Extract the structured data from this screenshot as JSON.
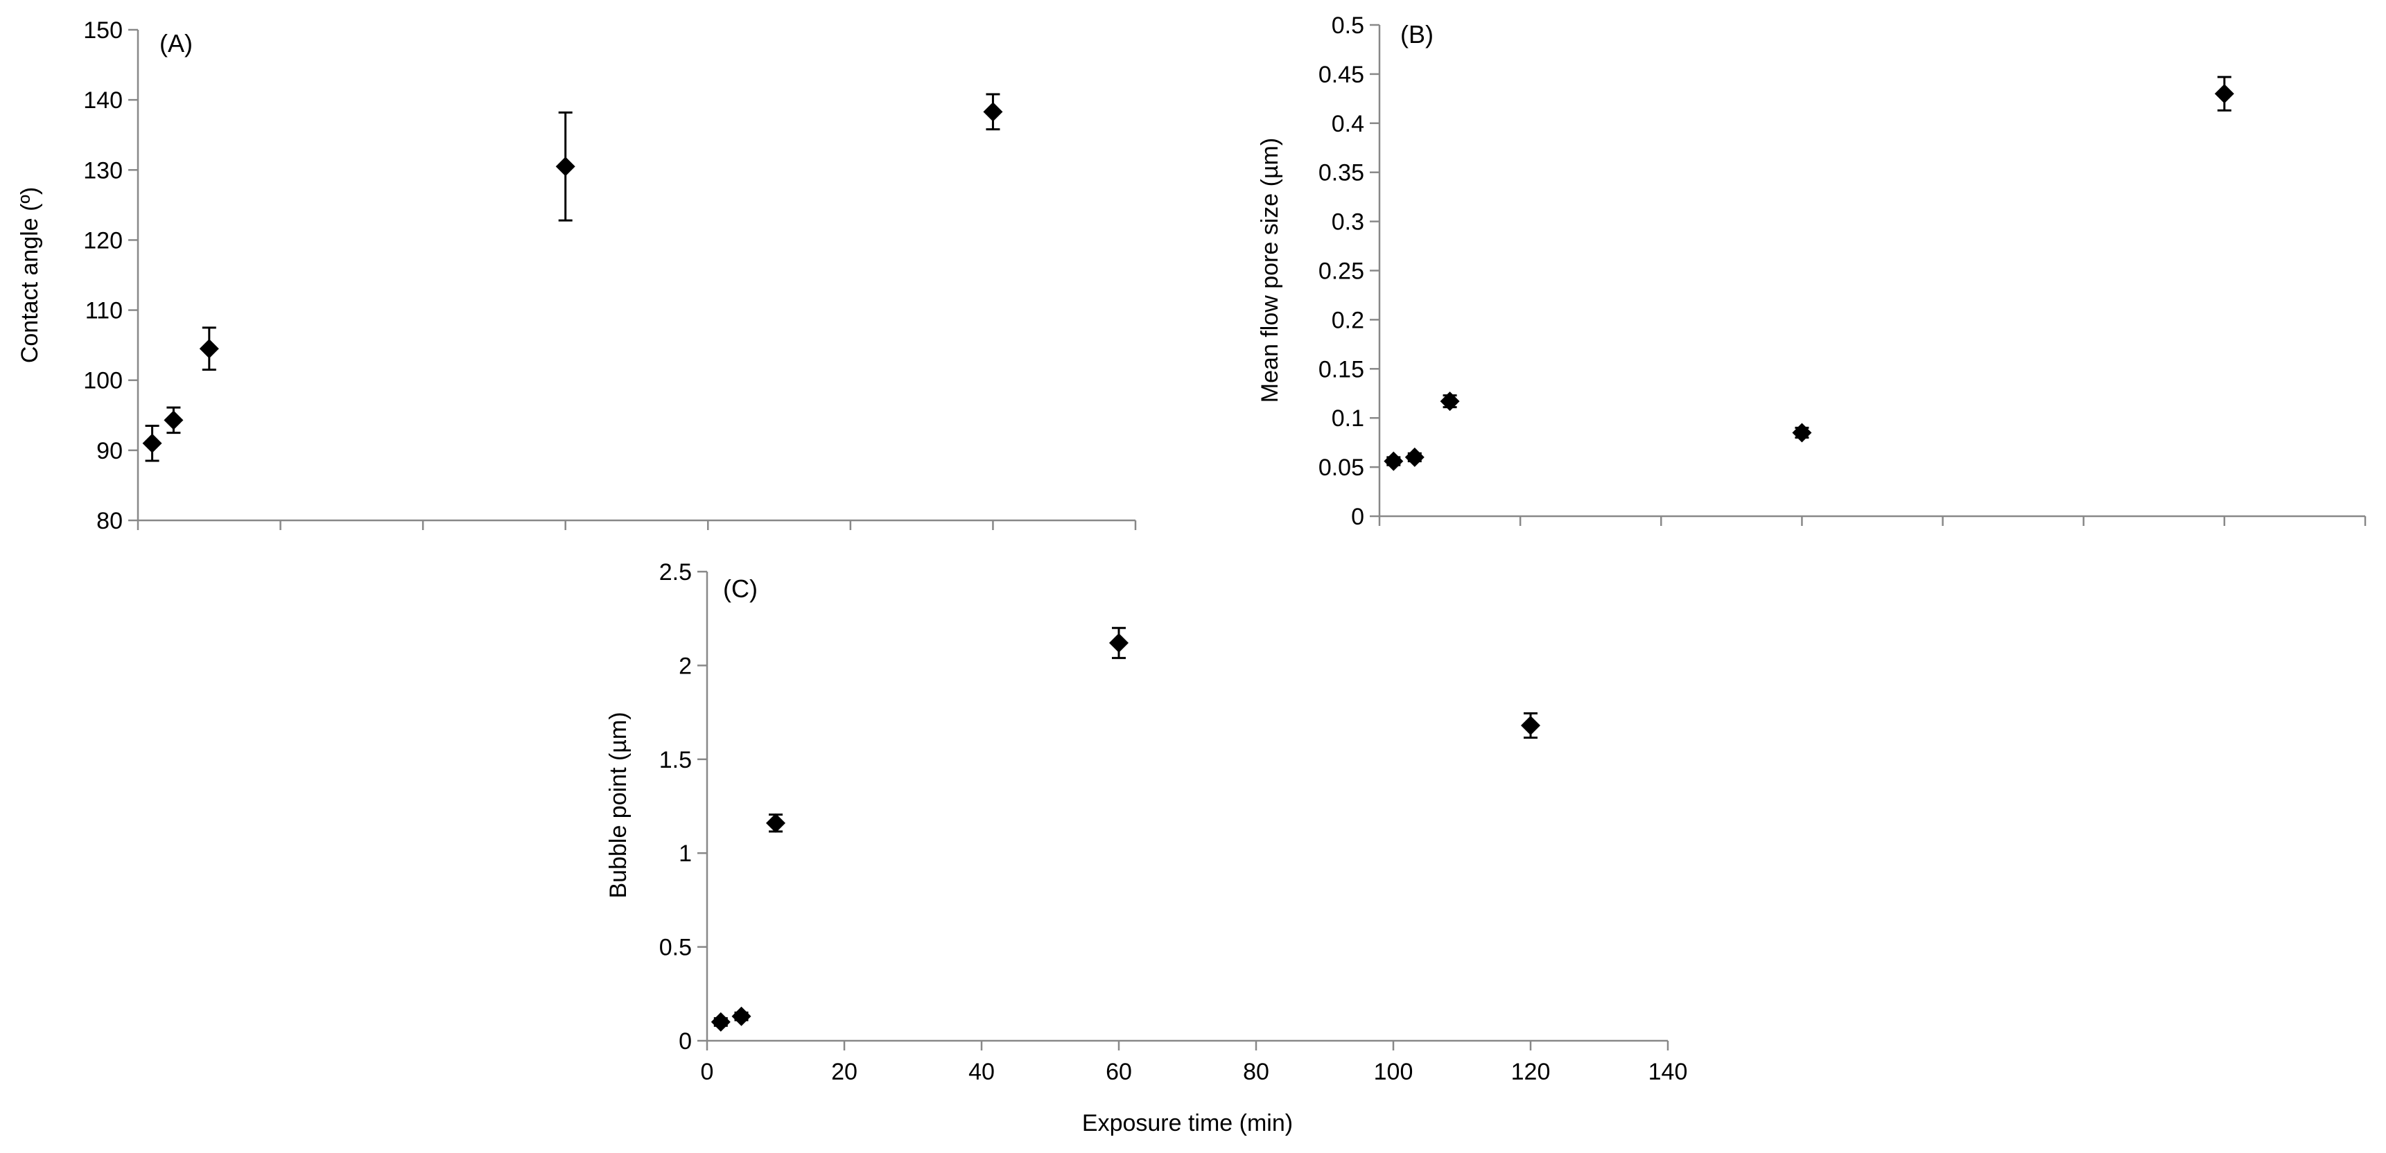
{
  "chart_data": [
    {
      "type": "scatter",
      "panel_label": "(A)",
      "xlabel": "",
      "ylabel": "Contact angle (º)",
      "xlim": [
        0,
        140
      ],
      "ylim": [
        80,
        150
      ],
      "yticks": [
        "80",
        "90",
        "100",
        "110",
        "120",
        "130",
        "140",
        "150"
      ],
      "series": [
        {
          "x": [
            2,
            5,
            10,
            60,
            120
          ],
          "y": [
            91,
            94.3,
            104.5,
            130.5,
            138.3
          ],
          "err": [
            2.5,
            1.8,
            3,
            7.7,
            2.5
          ]
        }
      ],
      "grid": false,
      "marker": "diamond",
      "color": "#000000"
    },
    {
      "type": "scatter",
      "panel_label": "(B)",
      "xlabel": "",
      "ylabel": "Mean flow pore size (µm)",
      "xlim": [
        0,
        140
      ],
      "ylim": [
        0,
        0.5
      ],
      "yticks": [
        "0",
        "0.05",
        "0.1",
        "0.15",
        "0.2",
        "0.25",
        "0.3",
        "0.35",
        "0.4",
        "0.45",
        "0.5"
      ],
      "series": [
        {
          "x": [
            2,
            5,
            10,
            60,
            120
          ],
          "y": [
            0.056,
            0.06,
            0.117,
            0.085,
            0.43
          ],
          "err": [
            0.004,
            0.004,
            0.006,
            0.005,
            0.017
          ]
        }
      ],
      "grid": false,
      "marker": "diamond",
      "color": "#000000"
    },
    {
      "type": "scatter",
      "panel_label": "(C)",
      "xlabel": "Exposure time (min)",
      "ylabel": "Bubble point (µm)",
      "xlim": [
        0,
        140
      ],
      "ylim": [
        0,
        2.5
      ],
      "xticks": [
        "0",
        "20",
        "40",
        "60",
        "80",
        "100",
        "120",
        "140"
      ],
      "yticks": [
        "0",
        "0.5",
        "1",
        "1.5",
        "2",
        "2.5"
      ],
      "series": [
        {
          "x": [
            2,
            5,
            10,
            60,
            120
          ],
          "y": [
            0.1,
            0.13,
            1.16,
            2.12,
            1.68
          ],
          "err": [
            0.02,
            0.02,
            0.045,
            0.08,
            0.065
          ]
        }
      ],
      "grid": false,
      "marker": "diamond",
      "color": "#000000"
    }
  ]
}
